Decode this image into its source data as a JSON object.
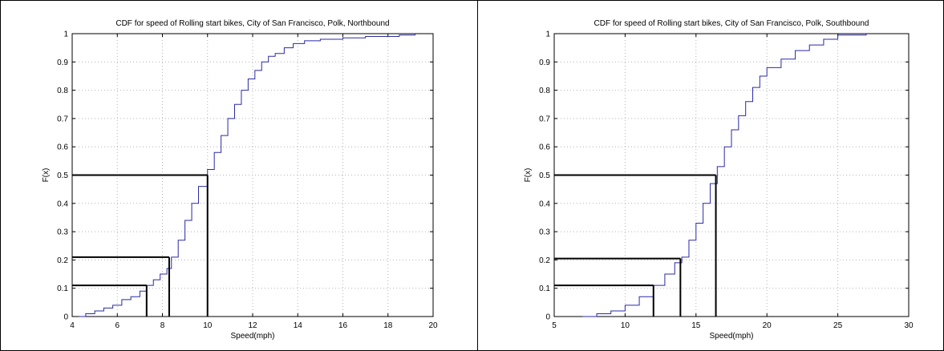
{
  "chart_data": [
    {
      "type": "line",
      "title": "CDF for speed of Rolling start bikes, City of San Francisco, Polk, Northbound",
      "xlabel": "Speed(mph)",
      "ylabel": "F(x)",
      "xlim": [
        4,
        20
      ],
      "ylim": [
        0,
        1
      ],
      "xticks": [
        4,
        6,
        8,
        10,
        12,
        14,
        16,
        18,
        20
      ],
      "yticks": [
        0,
        0.1,
        0.2,
        0.3,
        0.4,
        0.5,
        0.6,
        0.7,
        0.8,
        0.9,
        1
      ],
      "grid": true,
      "series": [
        {
          "color": "#2a2aa8",
          "x": [
            4.3,
            4.6,
            5.0,
            5.4,
            5.8,
            6.2,
            6.6,
            7.0,
            7.3,
            7.6,
            7.9,
            8.2,
            8.4,
            8.7,
            9.0,
            9.3,
            9.6,
            10.0,
            10.3,
            10.6,
            10.9,
            11.2,
            11.5,
            11.8,
            12.1,
            12.4,
            12.7,
            13.0,
            13.4,
            13.8,
            14.3,
            15.0,
            16.0,
            17.0,
            18.5,
            19.2
          ],
          "y": [
            0,
            0.01,
            0.02,
            0.03,
            0.04,
            0.06,
            0.07,
            0.09,
            0.11,
            0.13,
            0.15,
            0.17,
            0.21,
            0.27,
            0.34,
            0.4,
            0.46,
            0.52,
            0.58,
            0.64,
            0.7,
            0.75,
            0.8,
            0.84,
            0.87,
            0.9,
            0.92,
            0.93,
            0.95,
            0.965,
            0.975,
            0.98,
            0.985,
            0.99,
            0.995,
            1.0
          ]
        }
      ],
      "reference_lines": [
        {
          "percentile": 0.11,
          "speed": 7.3
        },
        {
          "percentile": 0.21,
          "speed": 8.3
        },
        {
          "percentile": 0.5,
          "speed": 10.0
        }
      ]
    },
    {
      "type": "line",
      "title": "CDF for speed of Rolling start bikes, City of San Francisco, Polk, Southbound",
      "xlabel": "Speed(mph)",
      "ylabel": "F(x)",
      "xlim": [
        5,
        30
      ],
      "ylim": [
        0,
        1
      ],
      "xticks": [
        5,
        10,
        15,
        20,
        25,
        30
      ],
      "yticks": [
        0,
        0.1,
        0.2,
        0.3,
        0.4,
        0.5,
        0.6,
        0.7,
        0.8,
        0.9,
        1
      ],
      "grid": true,
      "series": [
        {
          "color": "#2a2aa8",
          "x": [
            7.0,
            8.0,
            9.0,
            10.0,
            11.0,
            12.0,
            12.8,
            13.5,
            14.0,
            14.5,
            15.0,
            15.5,
            16.0,
            16.5,
            17.0,
            17.5,
            18.0,
            18.5,
            19.0,
            19.5,
            20.0,
            21.0,
            22.0,
            23.0,
            24.0,
            25.0,
            27.0
          ],
          "y": [
            0,
            0.01,
            0.02,
            0.04,
            0.07,
            0.11,
            0.15,
            0.19,
            0.21,
            0.27,
            0.33,
            0.4,
            0.47,
            0.53,
            0.6,
            0.66,
            0.71,
            0.76,
            0.81,
            0.85,
            0.88,
            0.91,
            0.94,
            0.96,
            0.98,
            0.995,
            1.0
          ]
        }
      ],
      "reference_lines": [
        {
          "percentile": 0.11,
          "speed": 12.0
        },
        {
          "percentile": 0.205,
          "speed": 13.9
        },
        {
          "percentile": 0.5,
          "speed": 16.4
        }
      ]
    }
  ]
}
